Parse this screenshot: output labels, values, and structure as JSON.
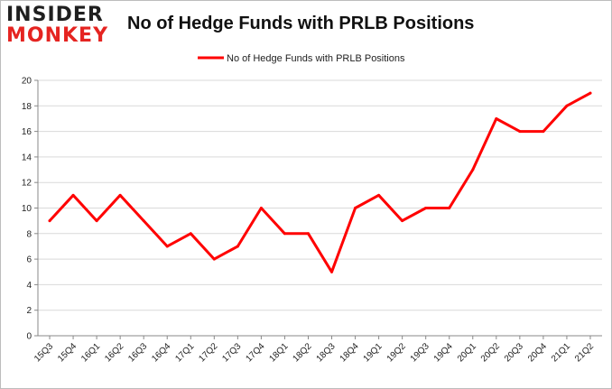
{
  "brand": {
    "line1": "INSIDER",
    "line2": "MONKEY"
  },
  "chart_data": {
    "type": "line",
    "title": "No of Hedge Funds with PRLB Positions",
    "xlabel": "",
    "ylabel": "",
    "categories": [
      "15Q3",
      "15Q4",
      "16Q1",
      "16Q2",
      "16Q3",
      "16Q4",
      "17Q1",
      "17Q2",
      "17Q3",
      "17Q4",
      "18Q1",
      "18Q2",
      "18Q3",
      "18Q4",
      "19Q1",
      "19Q2",
      "19Q3",
      "19Q4",
      "20Q1",
      "20Q2",
      "20Q3",
      "20Q4",
      "21Q1",
      "21Q2"
    ],
    "series": [
      {
        "name": "No of Hedge Funds with PRLB Positions",
        "values": [
          9,
          11,
          9,
          11,
          9,
          7,
          8,
          6,
          7,
          10,
          8,
          8,
          5,
          10,
          11,
          9,
          10,
          10,
          13,
          17,
          16,
          16,
          18,
          19
        ]
      }
    ],
    "ylim": [
      0,
      20
    ],
    "yticks": [
      0,
      2,
      4,
      6,
      8,
      10,
      12,
      14,
      16,
      18,
      20
    ],
    "grid": "horizontal",
    "legend": "top-center",
    "line_color": "#ff0000"
  }
}
